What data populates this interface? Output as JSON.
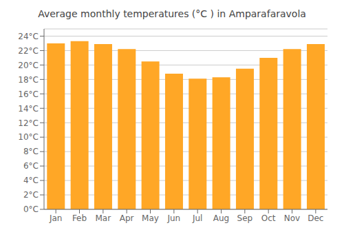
{
  "chart_data": {
    "type": "bar",
    "title": "Average monthly temperatures (°C ) in Amparafaravola",
    "categories": [
      "Jan",
      "Feb",
      "Mar",
      "Apr",
      "May",
      "Jun",
      "Jul",
      "Aug",
      "Sep",
      "Oct",
      "Nov",
      "Dec"
    ],
    "values": [
      23.0,
      23.3,
      22.9,
      22.2,
      20.5,
      18.8,
      18.1,
      18.3,
      19.5,
      21.0,
      22.2,
      22.9
    ],
    "color": "#FFA726",
    "ylim": [
      0,
      25
    ],
    "yticks": [
      {
        "value": 0,
        "label": "0°C"
      },
      {
        "value": 2,
        "label": "2°C"
      },
      {
        "value": 4,
        "label": "4°C"
      },
      {
        "value": 6,
        "label": "6°C"
      },
      {
        "value": 8,
        "label": "8°C"
      },
      {
        "value": 10,
        "label": "10°C"
      },
      {
        "value": 12,
        "label": "12°C"
      },
      {
        "value": 14,
        "label": "14°C"
      },
      {
        "value": 16,
        "label": "16°C"
      },
      {
        "value": 18,
        "label": "18°C"
      },
      {
        "value": 20,
        "label": "20°C"
      },
      {
        "value": 22,
        "label": "22°C"
      },
      {
        "value": 24,
        "label": "24°C"
      }
    ],
    "grid": true
  }
}
